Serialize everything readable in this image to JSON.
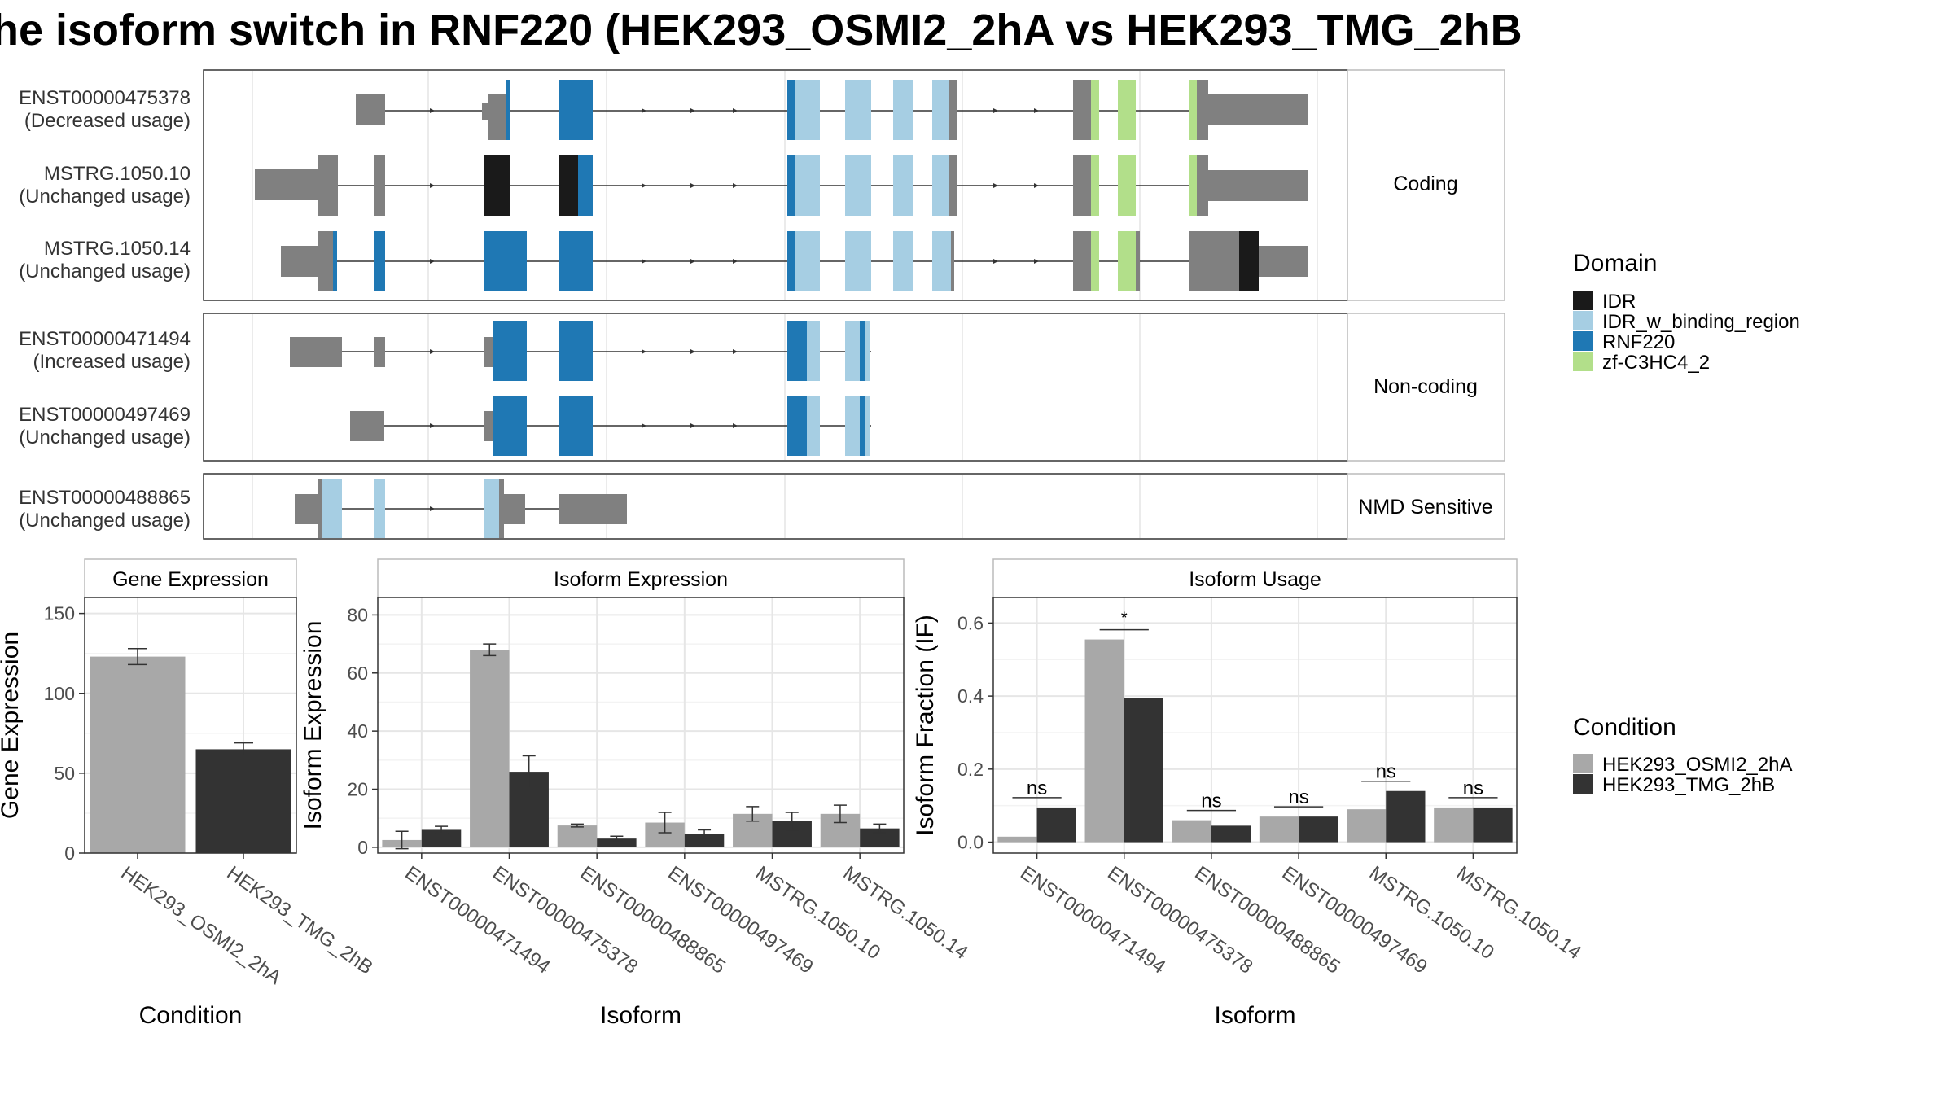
{
  "title": "he isoform switch in RNF220 (HEK293_OSMI2_2hA vs HEK293_TMG_2hB",
  "colors": {
    "exon": "#808080",
    "IDR": "#1a1a1a",
    "IDR_w_binding_region": "#a6cee3",
    "RNF220": "#1f78b4",
    "zf-C3HC4_2": "#b2df8a",
    "cond1": "#a8a8a8",
    "cond2": "#333333"
  },
  "structure": {
    "groups": [
      {
        "label": "Coding",
        "isoforms": [
          {
            "id": "ENST00000475378",
            "usage": "(Decreased usage)"
          },
          {
            "id": "MSTRG.1050.10",
            "usage": "(Unchanged usage)"
          },
          {
            "id": "MSTRG.1050.14",
            "usage": "(Unchanged usage)"
          }
        ]
      },
      {
        "label": "Non-coding",
        "isoforms": [
          {
            "id": "ENST00000471494",
            "usage": "(Increased usage)"
          },
          {
            "id": "ENST00000497469",
            "usage": "(Unchanged usage)"
          }
        ]
      },
      {
        "label": "NMD Sensitive",
        "isoforms": [
          {
            "id": "ENST00000488865",
            "usage": "(Unchanged usage)"
          }
        ]
      }
    ]
  },
  "legend_domain": {
    "title": "Domain",
    "items": [
      {
        "label": "IDR",
        "color": "#1a1a1a"
      },
      {
        "label": "IDR_w_binding_region",
        "color": "#a6cee3"
      },
      {
        "label": "RNF220",
        "color": "#1f78b4"
      },
      {
        "label": "zf-C3HC4_2",
        "color": "#b2df8a"
      }
    ]
  },
  "legend_condition": {
    "title": "Condition",
    "items": [
      {
        "label": "HEK293_OSMI2_2hA",
        "color": "#a8a8a8"
      },
      {
        "label": "HEK293_TMG_2hB",
        "color": "#333333"
      }
    ]
  },
  "chart_data": [
    {
      "type": "bar",
      "title": "Gene Expression",
      "xlabel": "Condition",
      "ylabel": "Gene Expression",
      "categories": [
        "HEK293_OSMI2_2hA",
        "HEK293_TMG_2hB"
      ],
      "values": [
        123,
        65
      ],
      "errors": [
        5,
        4
      ],
      "ylim": [
        0,
        160
      ],
      "yticks": [
        0,
        50,
        100,
        150
      ],
      "grid": true
    },
    {
      "type": "bar",
      "title": "Isoform Expression",
      "xlabel": "Isoform",
      "ylabel": "Isoform Expression",
      "categories": [
        "ENST00000471494",
        "ENST00000475378",
        "ENST00000488865",
        "ENST00000497469",
        "MSTRG.1050.10",
        "MSTRG.1050.14"
      ],
      "series": [
        {
          "name": "HEK293_OSMI2_2hA",
          "values": [
            2.5,
            68,
            7.5,
            8.5,
            11.5,
            11.5
          ],
          "errors": [
            3,
            2,
            0.5,
            3.5,
            2.5,
            3
          ]
        },
        {
          "name": "HEK293_TMG_2hB",
          "values": [
            6,
            26,
            3,
            4.5,
            9,
            6.5
          ],
          "errors": [
            1.2,
            5.5,
            0.8,
            1.5,
            3,
            1.5
          ]
        }
      ],
      "ylim": [
        -2,
        86
      ],
      "yticks": [
        0,
        20,
        40,
        60,
        80
      ],
      "grid": true
    },
    {
      "type": "bar",
      "title": "Isoform Usage",
      "xlabel": "Isoform",
      "ylabel": "Isoform Fraction (IF)",
      "categories": [
        "ENST00000471494",
        "ENST00000475378",
        "ENST00000488865",
        "ENST00000497469",
        "MSTRG.1050.10",
        "MSTRG.1050.14"
      ],
      "series": [
        {
          "name": "HEK293_OSMI2_2hA",
          "values": [
            0.015,
            0.555,
            0.06,
            0.07,
            0.09,
            0.095
          ]
        },
        {
          "name": "HEK293_TMG_2hB",
          "values": [
            0.095,
            0.395,
            0.045,
            0.07,
            0.14,
            0.095
          ]
        }
      ],
      "significance": [
        "ns",
        "*",
        "ns",
        "ns",
        "ns",
        "ns"
      ],
      "ylim": [
        -0.03,
        0.67
      ],
      "yticks": [
        0.0,
        0.2,
        0.4,
        0.6
      ],
      "ytick_labels": [
        "0.0",
        "0.2",
        "0.4",
        "0.6"
      ],
      "grid": true
    }
  ]
}
